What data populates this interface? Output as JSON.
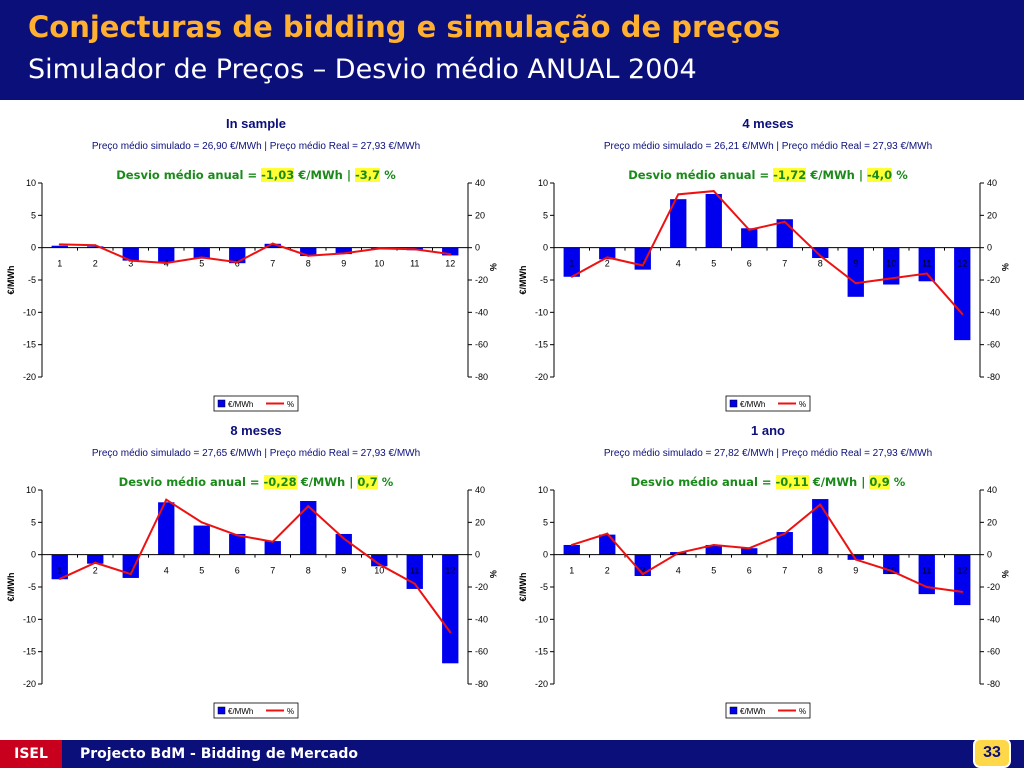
{
  "header": {
    "title": "Conjecturas de bidding e simulação de preços",
    "subtitle": "Simulador de Preços – Desvio médio ANUAL 2004"
  },
  "footer": {
    "org": "ISEL",
    "text": "Projecto BdM - Bidding de Mercado",
    "page": "33"
  },
  "colors": {
    "header_bg": "#0b0f7a",
    "title": "#ffb030",
    "bar": "#0000ee",
    "line": "#ee1111",
    "deviation_text": "#1a8a1a",
    "highlight": "#ffff33",
    "footer_org_bg": "#c8001e",
    "page_badge": "#ffd84a"
  },
  "chart_data": [
    {
      "type": "bar",
      "title": "In sample",
      "info": "Preço médio simulado = 26,90 €/MWh | Preço médio Real = 27,93 €/MWh",
      "deviation": {
        "prefix": "Desvio médio anual = ",
        "value_eur": "-1,03",
        "unit_eur": " €/MWh | ",
        "value_pct": "-3,7",
        "unit_pct": " %"
      },
      "categories": [
        "1",
        "2",
        "3",
        "4",
        "5",
        "6",
        "7",
        "8",
        "9",
        "10",
        "11",
        "12"
      ],
      "ylabel": "€/MWh",
      "y2label": "%",
      "ylim": [
        -20,
        10
      ],
      "y2lim": [
        -80,
        40
      ],
      "yticks": [
        "10",
        "5",
        "0",
        "-5",
        "-10",
        "-15",
        "-20"
      ],
      "y2ticks": [
        "40",
        "20",
        "0",
        "-20",
        "-40",
        "-60",
        "-80"
      ],
      "series": [
        {
          "name": "€/MWh",
          "type": "bar",
          "axis": "left",
          "values": [
            0.3,
            0.2,
            -2.0,
            -2.2,
            -1.7,
            -2.4,
            0.6,
            -1.3,
            -1.0,
            -0.2,
            -0.4,
            -1.2
          ]
        },
        {
          "name": "%",
          "type": "line",
          "axis": "right",
          "values": [
            2,
            1.5,
            -8,
            -9.5,
            -6,
            -9,
            2.5,
            -5,
            -3.5,
            -0.5,
            -1,
            -4
          ]
        }
      ],
      "legend": "bottom-center"
    },
    {
      "type": "bar",
      "title": "4 meses",
      "info": "Preço médio simulado = 26,21 €/MWh | Preço médio Real = 27,93 €/MWh",
      "deviation": {
        "prefix": "Desvio médio anual = ",
        "value_eur": "-1,72",
        "unit_eur": " €/MWh | ",
        "value_pct": "-4,0",
        "unit_pct": " %"
      },
      "categories": [
        "1",
        "2",
        "3",
        "4",
        "5",
        "6",
        "7",
        "8",
        "9",
        "10",
        "11",
        "12"
      ],
      "ylabel": "€/MWh",
      "y2label": "%",
      "ylim": [
        -20,
        10
      ],
      "y2lim": [
        -80,
        40
      ],
      "yticks": [
        "10",
        "5",
        "0",
        "-5",
        "-10",
        "-15",
        "-20"
      ],
      "y2ticks": [
        "40",
        "20",
        "0",
        "-20",
        "-40",
        "-60",
        "-80"
      ],
      "series": [
        {
          "name": "€/MWh",
          "type": "bar",
          "axis": "left",
          "values": [
            -4.5,
            -1.8,
            -3.4,
            7.5,
            8.3,
            3.0,
            4.4,
            -1.6,
            -7.6,
            -5.7,
            -5.2,
            -14.3
          ]
        },
        {
          "name": "%",
          "type": "line",
          "axis": "right",
          "values": [
            -18,
            -6,
            -11,
            33,
            35,
            11,
            16,
            -5,
            -22,
            -19,
            -16,
            -41
          ]
        }
      ],
      "legend": "bottom-center"
    },
    {
      "type": "bar",
      "title": "8 meses",
      "info": "Preço médio simulado = 27,65 €/MWh | Preço médio Real = 27,93 €/MWh",
      "deviation": {
        "prefix": "Desvio médio anual = ",
        "value_eur": "-0,28",
        "unit_eur": " €/MWh | ",
        "value_pct": "0,7",
        "unit_pct": " %"
      },
      "categories": [
        "1",
        "2",
        "3",
        "4",
        "5",
        "6",
        "7",
        "8",
        "9",
        "10",
        "11",
        "12"
      ],
      "ylabel": "€/MWh",
      "y2label": "%",
      "ylim": [
        -20,
        10
      ],
      "y2lim": [
        -80,
        40
      ],
      "yticks": [
        "10",
        "5",
        "0",
        "-5",
        "-10",
        "-15",
        "-20"
      ],
      "y2ticks": [
        "40",
        "20",
        "0",
        "-20",
        "-40",
        "-60",
        "-80"
      ],
      "series": [
        {
          "name": "€/MWh",
          "type": "bar",
          "axis": "left",
          "values": [
            -3.8,
            -1.4,
            -3.6,
            8.1,
            4.5,
            3.2,
            2.1,
            8.3,
            3.2,
            -1.8,
            -5.3,
            -16.8
          ]
        },
        {
          "name": "%",
          "type": "line",
          "axis": "right",
          "values": [
            -15,
            -5,
            -12,
            34,
            20,
            12,
            8,
            30,
            10,
            -6,
            -18,
            -48
          ]
        }
      ],
      "legend": "bottom-center"
    },
    {
      "type": "bar",
      "title": "1 ano",
      "info": "Preço médio simulado = 27,82 €/MWh | Preço médio Real = 27,93 €/MWh",
      "deviation": {
        "prefix": "Desvio médio anual = ",
        "value_eur": "-0,11",
        "unit_eur": " €/MWh | ",
        "value_pct": "0,9",
        "unit_pct": " %"
      },
      "categories": [
        "1",
        "2",
        "3",
        "4",
        "5",
        "6",
        "7",
        "8",
        "9",
        "10",
        "11",
        "12"
      ],
      "ylabel": "€/MWh",
      "y2label": "%",
      "ylim": [
        -20,
        10
      ],
      "y2lim": [
        -80,
        40
      ],
      "yticks": [
        "10",
        "5",
        "0",
        "-5",
        "-10",
        "-15",
        "-20"
      ],
      "y2ticks": [
        "40",
        "20",
        "0",
        "-20",
        "-40",
        "-60",
        "-80"
      ],
      "series": [
        {
          "name": "€/MWh",
          "type": "bar",
          "axis": "left",
          "values": [
            1.5,
            3.1,
            -3.3,
            0.4,
            1.5,
            1.0,
            3.5,
            8.6,
            -0.8,
            -3.0,
            -6.1,
            -7.8
          ]
        },
        {
          "name": "%",
          "type": "line",
          "axis": "right",
          "values": [
            6,
            13,
            -12,
            1,
            6,
            4,
            13,
            31,
            -3,
            -10,
            -20,
            -23
          ]
        }
      ],
      "legend": "bottom-center"
    }
  ]
}
